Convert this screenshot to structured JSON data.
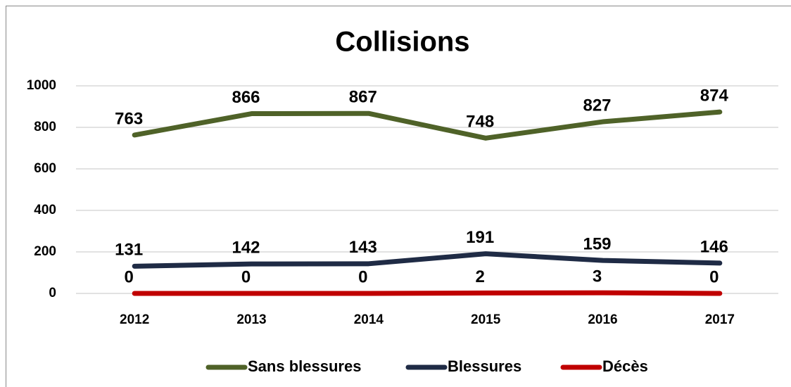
{
  "chart_data": {
    "type": "line",
    "title": "Collisions",
    "categories": [
      "2012",
      "2013",
      "2014",
      "2015",
      "2016",
      "2017"
    ],
    "series": [
      {
        "name": "Sans blessures",
        "color": "#4f6228",
        "values": [
          763,
          866,
          867,
          748,
          827,
          874
        ]
      },
      {
        "name": "Blessures",
        "color": "#1f2b45",
        "values": [
          131,
          142,
          143,
          191,
          159,
          146
        ]
      },
      {
        "name": "Décès",
        "color": "#c00000",
        "values": [
          0,
          0,
          0,
          2,
          3,
          0
        ]
      }
    ],
    "ylim": [
      0,
      1000
    ],
    "yticks": [
      0,
      200,
      400,
      600,
      800,
      1000
    ],
    "grid": true,
    "legend": "bottom"
  }
}
